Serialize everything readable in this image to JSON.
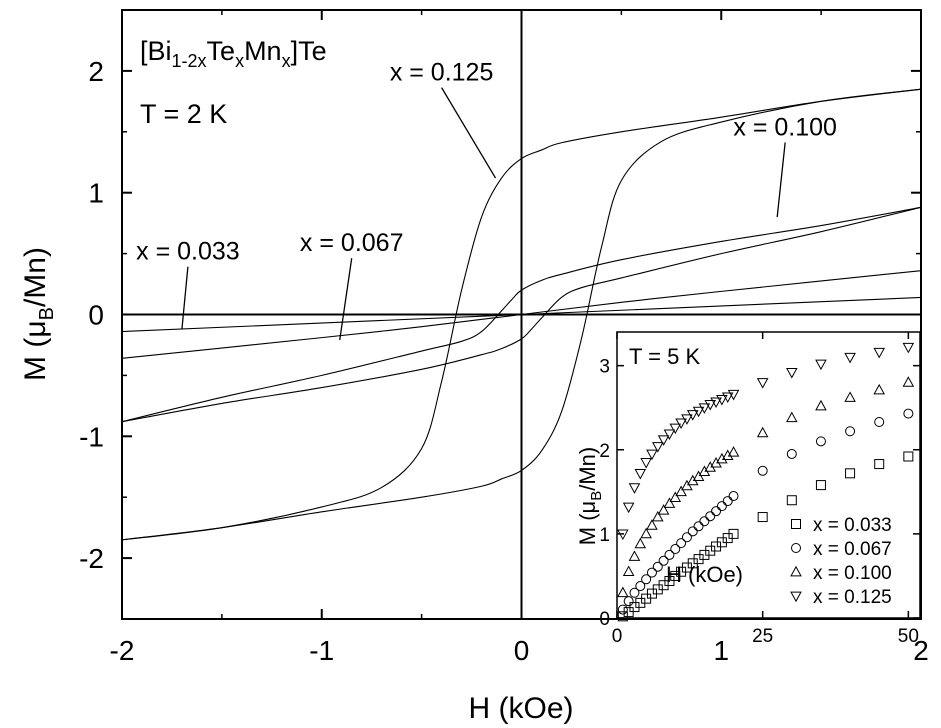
{
  "chart_data": [
    {
      "type": "line",
      "title_prefix": "[Bi",
      "title_sub1": "1-2x",
      "title_mid1": "Te",
      "title_sub2": "x",
      "title_mid2": "Mn",
      "title_sub3": "x",
      "title_suffix": "]Te",
      "temperature_label": "T = 2 K",
      "xlabel": "H (kOe)",
      "ylabel_prefix": "M (μ",
      "ylabel_sub": "B",
      "ylabel_suffix": "/Mn)",
      "xlim": [
        -2,
        2
      ],
      "ylim": [
        -2.5,
        2.5
      ],
      "xticks": [
        "-2",
        "-1",
        "0",
        "1",
        "2"
      ],
      "xtick_values": [
        -2,
        -1,
        0,
        1,
        2
      ],
      "yticks": [
        "-2",
        "-1",
        "0",
        "1",
        "2"
      ],
      "ytick_values": [
        -2,
        -1,
        0,
        1,
        2
      ],
      "grid": false,
      "series": [
        {
          "name": "x = 0.033",
          "loops": [
            {
              "x": [
                -2,
                2
              ],
              "y": [
                -0.14,
                0.14
              ]
            }
          ]
        },
        {
          "name": "x = 0.067",
          "loops": [
            {
              "x": [
                -2,
                -1,
                -0.5,
                0,
                0.5,
                1,
                2
              ],
              "y": [
                -0.36,
                -0.19,
                -0.1,
                0,
                0.1,
                0.19,
                0.36
              ]
            }
          ]
        },
        {
          "name": "x = 0.100",
          "loops": [
            {
              "x": [
                -2,
                -1.5,
                -1,
                -0.5,
                -0.2,
                -0.1,
                0,
                0.05,
                0.1,
                0.2,
                0.3,
                0.5,
                1,
                1.5,
                2
              ],
              "y": [
                -0.88,
                -0.73,
                -0.6,
                -0.45,
                -0.33,
                -0.28,
                -0.2,
                -0.12,
                -0.03,
                0.14,
                0.22,
                0.3,
                0.5,
                0.68,
                0.88
              ]
            },
            {
              "x": [
                2,
                1.5,
                1,
                0.5,
                0.2,
                0.1,
                0,
                -0.05,
                -0.1,
                -0.2,
                -0.3,
                -0.5,
                -1,
                -1.5,
                -2
              ],
              "y": [
                0.88,
                0.73,
                0.6,
                0.45,
                0.33,
                0.28,
                0.2,
                0.12,
                0.03,
                -0.14,
                -0.22,
                -0.3,
                -0.5,
                -0.68,
                -0.88
              ]
            }
          ]
        },
        {
          "name": "x = 0.125",
          "loops": [
            {
              "x": [
                -2,
                -1.5,
                -1,
                -0.7,
                -0.5,
                -0.4,
                -0.3,
                -0.2,
                -0.1,
                0,
                0.1,
                0.2,
                0.5,
                1,
                1.5,
                2
              ],
              "y": [
                -1.85,
                -1.75,
                -1.58,
                -1.42,
                -1.1,
                -0.55,
                0.2,
                0.8,
                1.12,
                1.28,
                1.35,
                1.41,
                1.5,
                1.62,
                1.75,
                1.85
              ]
            },
            {
              "x": [
                2,
                1.5,
                1,
                0.7,
                0.5,
                0.4,
                0.3,
                0.2,
                0.1,
                0,
                -0.1,
                -0.2,
                -0.5,
                -1,
                -1.5,
                -2
              ],
              "y": [
                1.85,
                1.75,
                1.58,
                1.42,
                1.1,
                0.55,
                -0.2,
                -0.8,
                -1.12,
                -1.28,
                -1.35,
                -1.41,
                -1.5,
                -1.62,
                -1.75,
                -1.85
              ]
            }
          ]
        }
      ],
      "annotations": [
        {
          "text": "x = 0.125",
          "label_x": -0.4,
          "label_y": 1.92,
          "point_x": -0.13,
          "point_y": 1.12
        },
        {
          "text": "x = 0.100",
          "label_x": 1.32,
          "label_y": 1.47,
          "point_x": 1.28,
          "point_y": 0.8
        },
        {
          "text": "x = 0.067",
          "label_x": -0.85,
          "label_y": 0.52,
          "point_x": -0.91,
          "point_y": -0.21
        },
        {
          "text": "x = 0.033",
          "label_x": -1.67,
          "label_y": 0.45,
          "point_x": -1.7,
          "point_y": -0.12
        }
      ]
    },
    {
      "type": "scatter",
      "inset": true,
      "temperature_label": "T = 5 K",
      "xlabel": "H (kOe)",
      "ylabel_prefix": "M (μ",
      "ylabel_sub": "B",
      "ylabel_suffix": "/Mn)",
      "xlim": [
        0,
        52
      ],
      "ylim": [
        0,
        3.4
      ],
      "xticks": [
        "0",
        "25",
        "50"
      ],
      "xtick_values": [
        0,
        25,
        50
      ],
      "yticks": [
        "0",
        "1",
        "2",
        "3"
      ],
      "ytick_values": [
        0,
        1,
        2,
        3
      ],
      "series": [
        {
          "name": "x = 0.033",
          "marker": "square",
          "x": [
            1,
            2,
            3,
            4,
            5,
            6,
            7,
            8,
            9,
            10,
            11,
            12,
            13,
            14,
            15,
            16,
            17,
            18,
            19,
            20,
            25,
            30,
            35,
            40,
            45,
            50
          ],
          "y": [
            0.02,
            0.07,
            0.13,
            0.18,
            0.23,
            0.29,
            0.34,
            0.39,
            0.44,
            0.5,
            0.55,
            0.6,
            0.65,
            0.7,
            0.75,
            0.8,
            0.85,
            0.9,
            0.95,
            1.0,
            1.2,
            1.4,
            1.58,
            1.72,
            1.83,
            1.92
          ]
        },
        {
          "name": "x = 0.067",
          "marker": "circle",
          "x": [
            1,
            2,
            3,
            4,
            5,
            6,
            7,
            8,
            9,
            10,
            11,
            12,
            13,
            14,
            15,
            16,
            17,
            18,
            19,
            20,
            25,
            30,
            35,
            40,
            45,
            50
          ],
          "y": [
            0.1,
            0.2,
            0.3,
            0.38,
            0.46,
            0.54,
            0.61,
            0.68,
            0.75,
            0.82,
            0.89,
            0.96,
            1.03,
            1.09,
            1.15,
            1.21,
            1.27,
            1.33,
            1.39,
            1.45,
            1.75,
            1.95,
            2.1,
            2.22,
            2.33,
            2.43
          ]
        },
        {
          "name": "x = 0.100",
          "marker": "triangle-up",
          "x": [
            1,
            2,
            3,
            4,
            5,
            6,
            7,
            8,
            9,
            10,
            11,
            12,
            13,
            14,
            15,
            16,
            17,
            18,
            19,
            20,
            25,
            30,
            35,
            40,
            45,
            50
          ],
          "y": [
            0.3,
            0.55,
            0.73,
            0.88,
            1.0,
            1.1,
            1.2,
            1.28,
            1.36,
            1.43,
            1.5,
            1.57,
            1.63,
            1.68,
            1.74,
            1.79,
            1.84,
            1.89,
            1.93,
            1.97,
            2.2,
            2.38,
            2.52,
            2.62,
            2.71,
            2.8
          ]
        },
        {
          "name": "x = 0.125",
          "marker": "triangle-down",
          "x": [
            1,
            2,
            3,
            4,
            5,
            6,
            7,
            8,
            9,
            10,
            11,
            12,
            13,
            14,
            15,
            16,
            17,
            18,
            19,
            20,
            25,
            30,
            35,
            40,
            45,
            50
          ],
          "y": [
            1.0,
            1.32,
            1.55,
            1.72,
            1.85,
            1.95,
            2.04,
            2.12,
            2.19,
            2.26,
            2.32,
            2.37,
            2.42,
            2.46,
            2.5,
            2.54,
            2.57,
            2.6,
            2.63,
            2.66,
            2.8,
            2.92,
            3.02,
            3.1,
            3.16,
            3.22
          ]
        }
      ],
      "legend_location": "bottom-right"
    }
  ]
}
